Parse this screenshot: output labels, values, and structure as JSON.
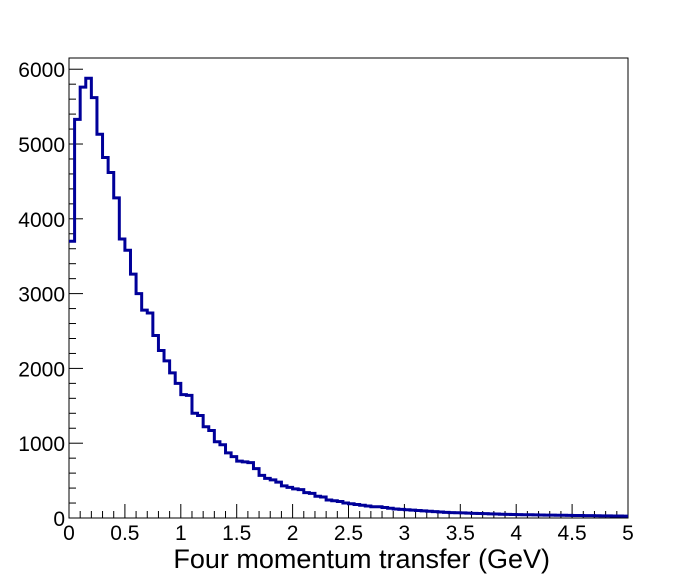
{
  "chart_data": {
    "type": "histogram",
    "title": "",
    "xlabel": "Four momentum transfer (GeV)",
    "ylabel": "",
    "xlim": [
      0,
      5
    ],
    "ylim": [
      0,
      6150
    ],
    "grid": false,
    "legend": "none",
    "line_color": "#000099",
    "bin_width": 0.05,
    "x_ticks": [
      0,
      0.5,
      1,
      1.5,
      2,
      2.5,
      3,
      3.5,
      4,
      4.5,
      5
    ],
    "x_tick_labels": [
      "0",
      "0.5",
      "1",
      "1.5",
      "2",
      "2.5",
      "3",
      "3.5",
      "4",
      "4.5",
      "5"
    ],
    "y_ticks": [
      0,
      1000,
      2000,
      3000,
      4000,
      5000,
      6000
    ],
    "y_tick_labels": [
      "0",
      "1000",
      "2000",
      "3000",
      "4000",
      "5000",
      "6000"
    ],
    "values": [
      3700,
      5330,
      5760,
      5880,
      5620,
      5130,
      4820,
      4620,
      4280,
      3730,
      3580,
      3260,
      3000,
      2780,
      2740,
      2440,
      2240,
      2100,
      1940,
      1800,
      1650,
      1640,
      1400,
      1370,
      1220,
      1170,
      1020,
      980,
      870,
      820,
      760,
      750,
      740,
      660,
      570,
      530,
      510,
      480,
      430,
      410,
      390,
      380,
      340,
      330,
      290,
      280,
      240,
      230,
      220,
      200,
      190,
      180,
      170,
      160,
      150,
      150,
      140,
      130,
      120,
      115,
      110,
      105,
      100,
      95,
      90,
      85,
      80,
      75,
      72,
      70,
      68,
      65,
      62,
      60,
      58,
      55,
      53,
      50,
      48,
      46,
      45,
      44,
      43,
      42,
      40,
      39,
      38,
      37,
      36,
      35,
      34,
      33,
      32,
      31,
      30,
      29,
      28,
      27,
      26,
      25
    ]
  }
}
